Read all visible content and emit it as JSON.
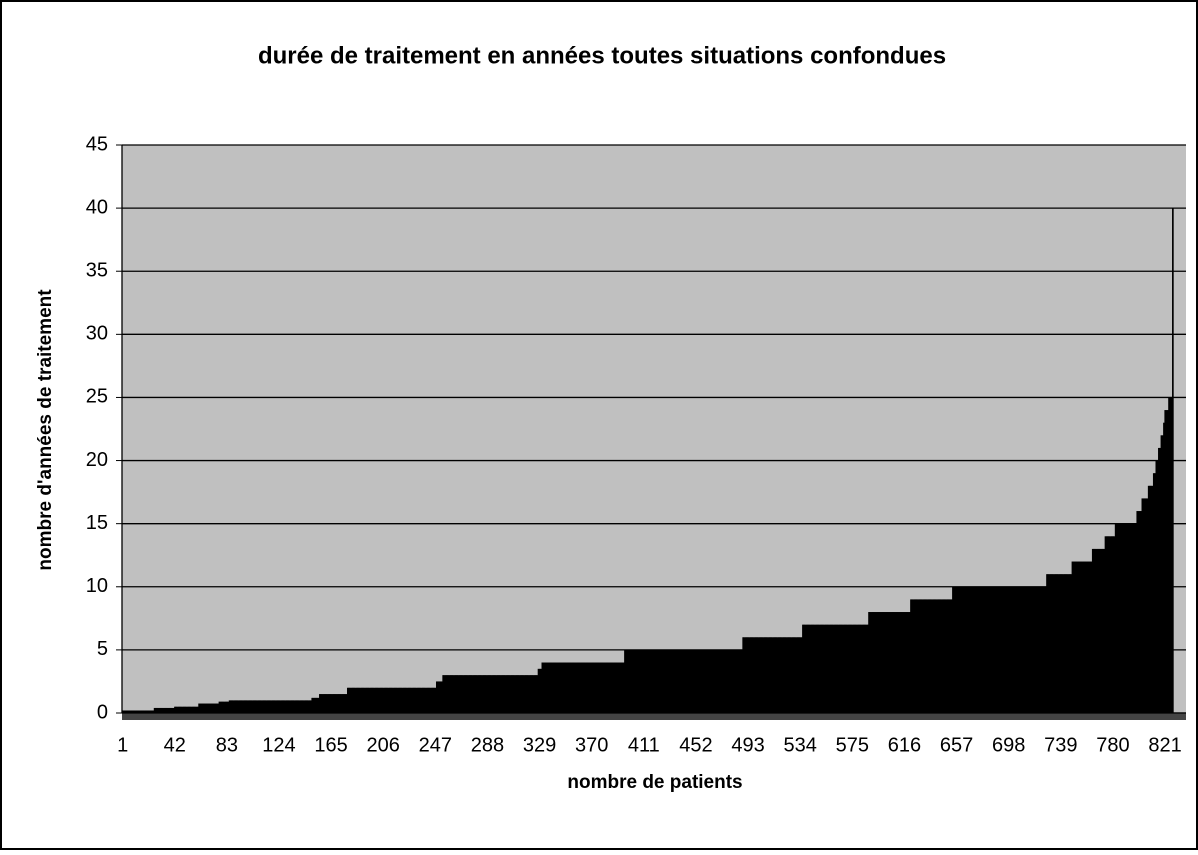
{
  "chart_data": {
    "type": "bar",
    "title": "durée de traitement en années toutes situations confondues",
    "x_label": "nombre de patients",
    "y_label": "nombre d'années de traitement",
    "color": "#000000",
    "background": "#c0c0c0",
    "grid": true,
    "ylim": [
      0,
      45
    ],
    "yticks": [
      0,
      5,
      10,
      15,
      20,
      25,
      30,
      35,
      40,
      45
    ],
    "categories": [
      "1",
      null,
      null,
      null,
      null,
      null,
      null,
      null,
      null,
      null,
      null,
      null,
      null,
      null,
      null,
      null,
      null,
      null,
      null,
      null,
      null,
      null,
      null,
      null,
      null,
      null,
      null,
      null,
      null,
      null,
      null,
      null,
      null,
      null,
      null,
      null,
      null,
      null,
      null,
      null,
      null,
      "42",
      null,
      null,
      null,
      null,
      null,
      null,
      null,
      null,
      null,
      null,
      null,
      null,
      null,
      null,
      null,
      null,
      null,
      null,
      null,
      null,
      null,
      null,
      null,
      null,
      null,
      null,
      null,
      null,
      null,
      null,
      null,
      null,
      null,
      null,
      null,
      null,
      null,
      null,
      null,
      null,
      "83",
      null,
      null,
      null,
      null,
      null,
      null,
      null,
      null,
      null,
      null,
      null,
      null,
      null,
      null,
      null,
      null,
      null,
      null,
      null,
      null,
      null,
      null,
      null,
      null,
      null,
      null,
      null,
      null,
      null,
      null,
      null,
      null,
      null,
      null,
      null,
      null,
      null,
      null,
      null,
      null,
      "124",
      null,
      null,
      null,
      null,
      null,
      null,
      null,
      null,
      null,
      null,
      null,
      null,
      null,
      null,
      null,
      null,
      null,
      null,
      null,
      null,
      null,
      null,
      null,
      null,
      null,
      null,
      null,
      null,
      null,
      null,
      null,
      null,
      null,
      null,
      null,
      null,
      null,
      null,
      null,
      null,
      "165",
      null,
      null,
      null,
      null,
      null,
      null,
      null,
      null,
      null,
      null,
      null,
      null,
      null,
      null,
      null,
      null,
      null,
      null,
      null,
      null,
      null,
      null,
      null,
      null,
      null,
      null,
      null,
      null,
      null,
      null,
      null,
      null,
      null,
      null,
      null,
      null,
      null,
      null,
      null,
      null,
      "206",
      null,
      null,
      null,
      null,
      null,
      null,
      null,
      null,
      null,
      null,
      null,
      null,
      null,
      null,
      null,
      null,
      null,
      null,
      null,
      null,
      null,
      null,
      null,
      null,
      null,
      null,
      null,
      null,
      null,
      null,
      null,
      null,
      null,
      null,
      null,
      null,
      null,
      null,
      null,
      null,
      "247",
      null,
      null,
      null,
      null,
      null,
      null,
      null,
      null,
      null,
      null,
      null,
      null,
      null,
      null,
      null,
      null,
      null,
      null,
      null,
      null,
      null,
      null,
      null,
      null,
      null,
      null,
      null,
      null,
      null,
      null,
      null,
      null,
      null,
      null,
      null,
      null,
      null,
      null,
      null,
      null,
      "288",
      null,
      null,
      null,
      null,
      null,
      null,
      null,
      null,
      null,
      null,
      null,
      null,
      null,
      null,
      null,
      null,
      null,
      null,
      null,
      null,
      null,
      null,
      null,
      null,
      null,
      null,
      null,
      null,
      null,
      null,
      null,
      null,
      null,
      null,
      null,
      null,
      null,
      null,
      null,
      null,
      "329",
      null,
      null,
      null,
      null,
      null,
      null,
      null,
      null,
      null,
      null,
      null,
      null,
      null,
      null,
      null,
      null,
      null,
      null,
      null,
      null,
      null,
      null,
      null,
      null,
      null,
      null,
      null,
      null,
      null,
      null,
      null,
      null,
      null,
      null,
      null,
      null,
      null,
      null,
      null,
      null,
      "370",
      null,
      null,
      null,
      null,
      null,
      null,
      null,
      null,
      null,
      null,
      null,
      null,
      null,
      null,
      null,
      null,
      null,
      null,
      null,
      null,
      null,
      null,
      null,
      null,
      null,
      null,
      null,
      null,
      null,
      null,
      null,
      null,
      null,
      null,
      null,
      null,
      null,
      null,
      null,
      null,
      "411",
      null,
      null,
      null,
      null,
      null,
      null,
      null,
      null,
      null,
      null,
      null,
      null,
      null,
      null,
      null,
      null,
      null,
      null,
      null,
      null,
      null,
      null,
      null,
      null,
      null,
      null,
      null,
      null,
      null,
      null,
      null,
      null,
      null,
      null,
      null,
      null,
      null,
      null,
      null,
      null,
      "452",
      null,
      null,
      null,
      null,
      null,
      null,
      null,
      null,
      null,
      null,
      null,
      null,
      null,
      null,
      null,
      null,
      null,
      null,
      null,
      null,
      null,
      null,
      null,
      null,
      null,
      null,
      null,
      null,
      null,
      null,
      null,
      null,
      null,
      null,
      null,
      null,
      null,
      null,
      null,
      null,
      "493",
      null,
      null,
      null,
      null,
      null,
      null,
      null,
      null,
      null,
      null,
      null,
      null,
      null,
      null,
      null,
      null,
      null,
      null,
      null,
      null,
      null,
      null,
      null,
      null,
      null,
      null,
      null,
      null,
      null,
      null,
      null,
      null,
      null,
      null,
      null,
      null,
      null,
      null,
      null,
      null,
      "534",
      null,
      null,
      null,
      null,
      null,
      null,
      null,
      null,
      null,
      null,
      null,
      null,
      null,
      null,
      null,
      null,
      null,
      null,
      null,
      null,
      null,
      null,
      null,
      null,
      null,
      null,
      null,
      null,
      null,
      null,
      null,
      null,
      null,
      null,
      null,
      null,
      null,
      null,
      null,
      null,
      "575",
      null,
      null,
      null,
      null,
      null,
      null,
      null,
      null,
      null,
      null,
      null,
      null,
      null,
      null,
      null,
      null,
      null,
      null,
      null,
      null,
      null,
      null,
      null,
      null,
      null,
      null,
      null,
      null,
      null,
      null,
      null,
      null,
      null,
      null,
      null,
      null,
      null,
      null,
      null,
      null,
      "616",
      null,
      null,
      null,
      null,
      null,
      null,
      null,
      null,
      null,
      null,
      null,
      null,
      null,
      null,
      null,
      null,
      null,
      null,
      null,
      null,
      null,
      null,
      null,
      null,
      null,
      null,
      null,
      null,
      null,
      null,
      null,
      null,
      null,
      null,
      null,
      null,
      null,
      null,
      null,
      null,
      "657",
      null,
      null,
      null,
      null,
      null,
      null,
      null,
      null,
      null,
      null,
      null,
      null,
      null,
      null,
      null,
      null,
      null,
      null,
      null,
      null,
      null,
      null,
      null,
      null,
      null,
      null,
      null,
      null,
      null,
      null,
      null,
      null,
      null,
      null,
      null,
      null,
      null,
      null,
      null,
      null,
      "698",
      null,
      null,
      null,
      null,
      null,
      null,
      null,
      null,
      null,
      null,
      null,
      null,
      null,
      null,
      null,
      null,
      null,
      null,
      null,
      null,
      null,
      null,
      null,
      null,
      null,
      null,
      null,
      null,
      null,
      null,
      null,
      null,
      null,
      null,
      null,
      null,
      null,
      null,
      null,
      null,
      "739",
      null,
      null,
      null,
      null,
      null,
      null,
      null,
      null,
      null,
      null,
      null,
      null,
      null,
      null,
      null,
      null,
      null,
      null,
      null,
      null,
      null,
      null,
      null,
      null,
      null,
      null,
      null,
      null,
      null,
      null,
      null,
      null,
      null,
      null,
      null,
      null,
      null,
      null,
      null,
      null,
      "780",
      null,
      null,
      null,
      null,
      null,
      null,
      null,
      null,
      null,
      null,
      null,
      null,
      null,
      null,
      null,
      null,
      null,
      null,
      null,
      null,
      null,
      null,
      null,
      null,
      null,
      null,
      null,
      null,
      null,
      null,
      null,
      null,
      null,
      null,
      null,
      null,
      null,
      null,
      null,
      null,
      "821",
      null,
      null,
      null,
      null,
      null,
      null,
      null,
      null,
      null,
      null,
      null,
      null,
      null,
      null,
      null,
      null
    ],
    "values": [
      0.2,
      0.2,
      0.2,
      0.2,
      0.2,
      0.2,
      0.2,
      0.2,
      0.2,
      0.2,
      0.2,
      0.2,
      0.2,
      0.2,
      0.2,
      0.2,
      0.2,
      0.2,
      0.2,
      0.2,
      0.2,
      0.2,
      0.2,
      0.2,
      0.2,
      0.4,
      0.4,
      0.4,
      0.4,
      0.4,
      0.4,
      0.4,
      0.4,
      0.4,
      0.4,
      0.4,
      0.4,
      0.4,
      0.4,
      0.4,
      0.4,
      0.5,
      0.5,
      0.5,
      0.5,
      0.5,
      0.5,
      0.5,
      0.5,
      0.5,
      0.5,
      0.5,
      0.5,
      0.5,
      0.5,
      0.5,
      0.5,
      0.5,
      0.5,
      0.5,
      0.75,
      0.75,
      0.75,
      0.75,
      0.75,
      0.75,
      0.75,
      0.75,
      0.75,
      0.75,
      0.75,
      0.75,
      0.75,
      0.75,
      0.75,
      0.75,
      0.9,
      0.9,
      0.9,
      0.9,
      0.9,
      0.9,
      0.9,
      0.9,
      1,
      1,
      1,
      1,
      1,
      1,
      1,
      1,
      1,
      1,
      1,
      1,
      1,
      1,
      1,
      1,
      1,
      1,
      1,
      1,
      1,
      1,
      1,
      1,
      1,
      1,
      1,
      1,
      1,
      1,
      1,
      1,
      1,
      1,
      1,
      1,
      1,
      1,
      1,
      1,
      1,
      1,
      1,
      1,
      1,
      1,
      1,
      1,
      1,
      1,
      1,
      1,
      1,
      1,
      1,
      1,
      1,
      1,
      1,
      1,
      1,
      1,
      1,
      1,
      1,
      1.2,
      1.2,
      1.2,
      1.2,
      1.2,
      1.2,
      1.5,
      1.5,
      1.5,
      1.5,
      1.5,
      1.5,
      1.5,
      1.5,
      1.5,
      1.5,
      1.5,
      1.5,
      1.5,
      1.5,
      1.5,
      1.5,
      1.5,
      1.5,
      1.5,
      1.5,
      1.5,
      1.5,
      2,
      2,
      2,
      2,
      2,
      2,
      2,
      2,
      2,
      2,
      2,
      2,
      2,
      2,
      2,
      2,
      2,
      2,
      2,
      2,
      2,
      2,
      2,
      2,
      2,
      2,
      2,
      2,
      2,
      2,
      2,
      2,
      2,
      2,
      2,
      2,
      2,
      2,
      2,
      2,
      2,
      2,
      2,
      2,
      2,
      2,
      2,
      2,
      2,
      2,
      2,
      2,
      2,
      2,
      2,
      2,
      2,
      2,
      2,
      2,
      2,
      2,
      2,
      2,
      2,
      2,
      2,
      2,
      2,
      2,
      2.5,
      2.5,
      2.5,
      2.5,
      2.5,
      3,
      3,
      3,
      3,
      3,
      3,
      3,
      3,
      3,
      3,
      3,
      3,
      3,
      3,
      3,
      3,
      3,
      3,
      3,
      3,
      3,
      3,
      3,
      3,
      3,
      3,
      3,
      3,
      3,
      3,
      3,
      3,
      3,
      3,
      3,
      3,
      3,
      3,
      3,
      3,
      3,
      3,
      3,
      3,
      3,
      3,
      3,
      3,
      3,
      3,
      3,
      3,
      3,
      3,
      3,
      3,
      3,
      3,
      3,
      3,
      3,
      3,
      3,
      3,
      3,
      3,
      3,
      3,
      3,
      3,
      3,
      3,
      3,
      3,
      3,
      3.5,
      3.5,
      3.5,
      4,
      4,
      4,
      4,
      4,
      4,
      4,
      4,
      4,
      4,
      4,
      4,
      4,
      4,
      4,
      4,
      4,
      4,
      4,
      4,
      4,
      4,
      4,
      4,
      4,
      4,
      4,
      4,
      4,
      4,
      4,
      4,
      4,
      4,
      4,
      4,
      4,
      4,
      4,
      4,
      4,
      4,
      4,
      4,
      4,
      4,
      4,
      4,
      4,
      4,
      4,
      4,
      4,
      4,
      4,
      4,
      4,
      4,
      4,
      4,
      4,
      4,
      4,
      4,
      4,
      5,
      5,
      5,
      5,
      5,
      5,
      5,
      5,
      5,
      5,
      5,
      5,
      5,
      5,
      5,
      5,
      5,
      5,
      5,
      5,
      5,
      5,
      5,
      5,
      5,
      5,
      5,
      5,
      5,
      5,
      5,
      5,
      5,
      5,
      5,
      5,
      5,
      5,
      5,
      5,
      5,
      5,
      5,
      5,
      5,
      5,
      5,
      5,
      5,
      5,
      5,
      5,
      5,
      5,
      5,
      5,
      5,
      5,
      5,
      5,
      5,
      5,
      5,
      5,
      5,
      5,
      5,
      5,
      5,
      5,
      5,
      5,
      5,
      5,
      5,
      5,
      5,
      5,
      5,
      5,
      5,
      5,
      5,
      5,
      5,
      5,
      5,
      5,
      5,
      5,
      5,
      5,
      5,
      6,
      6,
      6,
      6,
      6,
      6,
      6,
      6,
      6,
      6,
      6,
      6,
      6,
      6,
      6,
      6,
      6,
      6,
      6,
      6,
      6,
      6,
      6,
      6,
      6,
      6,
      6,
      6,
      6,
      6,
      6,
      6,
      6,
      6,
      6,
      6,
      6,
      6,
      6,
      6,
      6,
      6,
      6,
      6,
      6,
      6,
      6,
      7,
      7,
      7,
      7,
      7,
      7,
      7,
      7,
      7,
      7,
      7,
      7,
      7,
      7,
      7,
      7,
      7,
      7,
      7,
      7,
      7,
      7,
      7,
      7,
      7,
      7,
      7,
      7,
      7,
      7,
      7,
      7,
      7,
      7,
      7,
      7,
      7,
      7,
      7,
      7,
      7,
      7,
      7,
      7,
      7,
      7,
      7,
      7,
      7,
      7,
      7,
      7,
      8,
      8,
      8,
      8,
      8,
      8,
      8,
      8,
      8,
      8,
      8,
      8,
      8,
      8,
      8,
      8,
      8,
      8,
      8,
      8,
      8,
      8,
      8,
      8,
      8,
      8,
      8,
      8,
      8,
      8,
      8,
      8,
      8,
      9,
      9,
      9,
      9,
      9,
      9,
      9,
      9,
      9,
      9,
      9,
      9,
      9,
      9,
      9,
      9,
      9,
      9,
      9,
      9,
      9,
      9,
      9,
      9,
      9,
      9,
      9,
      9,
      9,
      9,
      9,
      9,
      9,
      10,
      10,
      10,
      10,
      10,
      10,
      10,
      10,
      10,
      10,
      10,
      10,
      10,
      10,
      10,
      10,
      10,
      10,
      10,
      10,
      10,
      10,
      10,
      10,
      10,
      10,
      10,
      10,
      10,
      10,
      10,
      10,
      10,
      10,
      10,
      10,
      10,
      10,
      10,
      10,
      10,
      10,
      10,
      10,
      10,
      10,
      10,
      10,
      10,
      10,
      10,
      10,
      10,
      10,
      10,
      10,
      10,
      10,
      10,
      10,
      10,
      10,
      10,
      10,
      10,
      10,
      10,
      10,
      10,
      10,
      10,
      10,
      10,
      10,
      11,
      11,
      11,
      11,
      11,
      11,
      11,
      11,
      11,
      11,
      11,
      11,
      11,
      11,
      11,
      11,
      11,
      11,
      11,
      11,
      12,
      12,
      12,
      12,
      12,
      12,
      12,
      12,
      12,
      12,
      12,
      12,
      12,
      12,
      12,
      12,
      13,
      13,
      13,
      13,
      13,
      13,
      13,
      13,
      13,
      13,
      14,
      14,
      14,
      14,
      14,
      14,
      14,
      14,
      15,
      15,
      15,
      15,
      15,
      15,
      15,
      15,
      15,
      15,
      15,
      15,
      15,
      15,
      15,
      15,
      15,
      16,
      16,
      16,
      16,
      17,
      17,
      17,
      17,
      17,
      18,
      18,
      18,
      18,
      19,
      19,
      20,
      20,
      21,
      21,
      22,
      22,
      23,
      24,
      24,
      24,
      25,
      25,
      25,
      40,
      0,
      0,
      0,
      0,
      0,
      0,
      0,
      0,
      0,
      0
    ]
  }
}
